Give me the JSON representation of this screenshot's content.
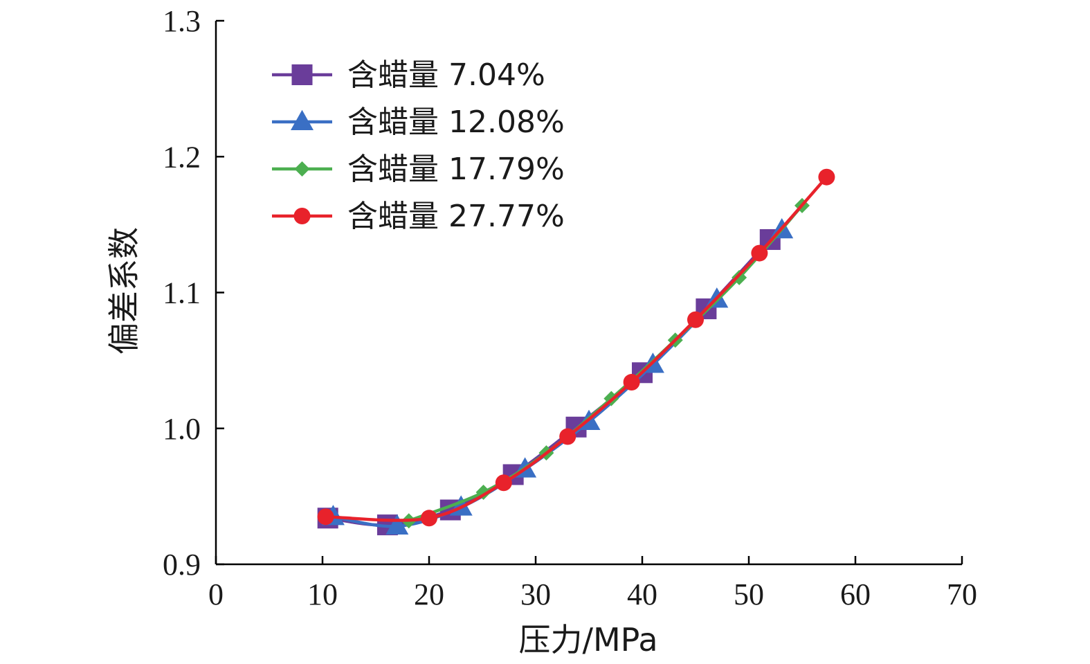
{
  "chart_data": {
    "type": "line",
    "title": "",
    "xlabel": "压力/MPa",
    "ylabel": "偏差系数",
    "xlim": [
      0,
      70
    ],
    "ylim": [
      0.9,
      1.3
    ],
    "xticks": [
      "0",
      "10",
      "20",
      "30",
      "40",
      "50",
      "60",
      "70"
    ],
    "yticks": [
      "0.9",
      "1.0",
      "1.1",
      "1.2",
      "1.3"
    ],
    "grid": false,
    "legend_position": "top-left",
    "series": [
      {
        "name": "含蜡量 7.04%",
        "color": "#6a3d9a",
        "marker": "square",
        "x": [
          10.5,
          16.1,
          22.0,
          27.9,
          33.8,
          40.0,
          46.0,
          52.0
        ],
        "y": [
          0.934,
          0.929,
          0.94,
          0.966,
          1.001,
          1.041,
          1.088,
          1.139
        ]
      },
      {
        "name": "含蜡量 12.08%",
        "color": "#3a6fc4",
        "marker": "triangle",
        "x": [
          11.0,
          17.0,
          23.0,
          29.0,
          35.0,
          41.0,
          47.0,
          53.1
        ],
        "y": [
          0.935,
          0.928,
          0.942,
          0.97,
          1.005,
          1.047,
          1.095,
          1.146
        ]
      },
      {
        "name": "含蜡量 17.79%",
        "color": "#4caf50",
        "marker": "diamond",
        "x": [
          18.1,
          25.1,
          31.0,
          37.1,
          43.1,
          49.1,
          55.0
        ],
        "y": [
          0.932,
          0.953,
          0.982,
          1.022,
          1.065,
          1.111,
          1.164
        ]
      },
      {
        "name": "含蜡量 27.77%",
        "color": "#e8222b",
        "marker": "circle",
        "x": [
          10.3,
          20.0,
          27.0,
          33.0,
          39.0,
          45.0,
          51.0,
          57.3
        ],
        "y": [
          0.935,
          0.934,
          0.96,
          0.994,
          1.034,
          1.08,
          1.129,
          1.185
        ]
      }
    ]
  }
}
